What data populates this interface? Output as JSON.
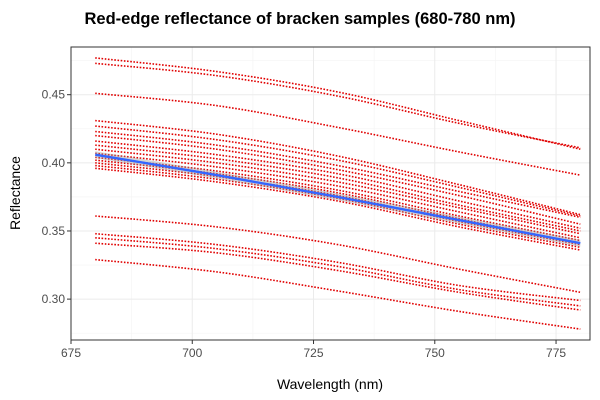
{
  "chart_data": {
    "type": "line",
    "title": "Red-edge reflectance of bracken samples (680-780 nm)",
    "xlabel": "Wavelength (nm)",
    "ylabel": "Reflectance",
    "xlim": [
      675,
      782
    ],
    "ylim": [
      0.27,
      0.485
    ],
    "x_ticks": [
      675,
      700,
      725,
      750,
      775
    ],
    "y_ticks": [
      0.3,
      0.35,
      0.4,
      0.45
    ],
    "x_tick_labels": [
      "675",
      "700",
      "725",
      "750",
      "775"
    ],
    "y_tick_labels": [
      "0.30",
      "0.35",
      "0.40",
      "0.45"
    ],
    "grid": true,
    "legend": "none",
    "colors": {
      "samples": "#e00000",
      "smooth": "#3366ff",
      "smooth_band": "#999999",
      "grid_major": "#ebebeb",
      "grid_minor": "#f5f5f5",
      "panel_border": "#333333"
    },
    "x": [
      680,
      705,
      730,
      755,
      780
    ],
    "series": [
      {
        "values": [
          0.477,
          0.467,
          0.452,
          0.431,
          0.41
        ]
      },
      {
        "values": [
          0.473,
          0.464,
          0.449,
          0.429,
          0.411
        ]
      },
      {
        "values": [
          0.451,
          0.442,
          0.426,
          0.408,
          0.391
        ]
      },
      {
        "values": [
          0.431,
          0.421,
          0.405,
          0.384,
          0.362
        ]
      },
      {
        "values": [
          0.427,
          0.417,
          0.402,
          0.382,
          0.361
        ]
      },
      {
        "values": [
          0.423,
          0.413,
          0.398,
          0.379,
          0.36
        ]
      },
      {
        "values": [
          0.42,
          0.41,
          0.395,
          0.376,
          0.355
        ]
      },
      {
        "values": [
          0.416,
          0.406,
          0.392,
          0.372,
          0.352
        ]
      },
      {
        "values": [
          0.413,
          0.403,
          0.389,
          0.369,
          0.35
        ]
      },
      {
        "values": [
          0.41,
          0.4,
          0.386,
          0.367,
          0.348
        ]
      },
      {
        "values": [
          0.407,
          0.397,
          0.383,
          0.364,
          0.345
        ]
      },
      {
        "values": [
          0.404,
          0.394,
          0.38,
          0.361,
          0.343
        ]
      },
      {
        "values": [
          0.402,
          0.392,
          0.378,
          0.359,
          0.341
        ]
      },
      {
        "values": [
          0.4,
          0.39,
          0.376,
          0.357,
          0.34
        ]
      },
      {
        "values": [
          0.398,
          0.388,
          0.374,
          0.355,
          0.338
        ]
      },
      {
        "values": [
          0.396,
          0.386,
          0.372,
          0.353,
          0.336
        ]
      },
      {
        "values": [
          0.361,
          0.353,
          0.34,
          0.322,
          0.305
        ]
      },
      {
        "values": [
          0.348,
          0.34,
          0.327,
          0.31,
          0.299
        ]
      },
      {
        "values": [
          0.345,
          0.337,
          0.324,
          0.307,
          0.295
        ]
      },
      {
        "values": [
          0.341,
          0.334,
          0.321,
          0.305,
          0.292
        ]
      },
      {
        "values": [
          0.329,
          0.32,
          0.306,
          0.291,
          0.278
        ]
      }
    ],
    "smooth": {
      "values": [
        0.406,
        0.391,
        0.375,
        0.358,
        0.341
      ]
    }
  }
}
